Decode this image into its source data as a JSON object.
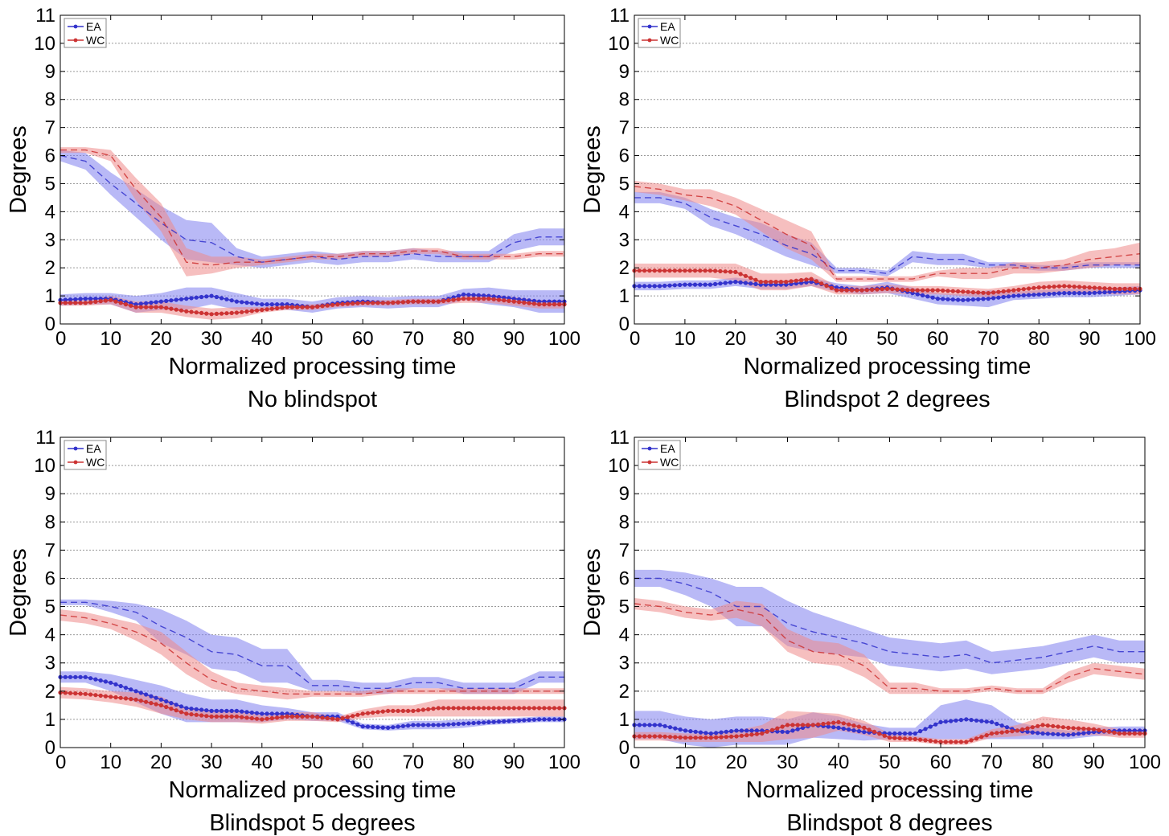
{
  "colors": {
    "ea": "#3333cc",
    "wc": "#cc3333",
    "ea_band": "#8080ee",
    "wc_band": "#ee8a8a"
  },
  "chart_data": [
    {
      "type": "line",
      "title": "No blindspot",
      "xlabel": "Normalized processing time",
      "ylabel": "Degrees",
      "xlim": [
        0,
        100
      ],
      "ylim": [
        0,
        11
      ],
      "xticks": [
        "0",
        "10",
        "20",
        "30",
        "40",
        "50",
        "60",
        "70",
        "80",
        "90",
        "100"
      ],
      "yticks": [
        "0",
        "1",
        "2",
        "3",
        "4",
        "5",
        "6",
        "7",
        "8",
        "9",
        "10",
        "11"
      ],
      "grid": true,
      "legend": {
        "placement": "top-left",
        "entries": [
          "EA",
          "WC"
        ]
      },
      "x": [
        0,
        5,
        10,
        15,
        20,
        25,
        30,
        35,
        40,
        45,
        50,
        55,
        60,
        65,
        70,
        75,
        80,
        85,
        90,
        95,
        100
      ],
      "series": [
        {
          "name": "EA",
          "style": "dashed",
          "values": [
            6.0,
            5.8,
            5.0,
            4.3,
            3.6,
            3.0,
            2.9,
            2.4,
            2.2,
            2.3,
            2.4,
            2.3,
            2.4,
            2.4,
            2.5,
            2.4,
            2.4,
            2.4,
            2.9,
            3.1,
            3.1
          ],
          "band": [
            0.2,
            0.3,
            0.4,
            0.5,
            0.6,
            0.7,
            0.7,
            0.3,
            0.2,
            0.2,
            0.2,
            0.2,
            0.2,
            0.2,
            0.2,
            0.2,
            0.2,
            0.2,
            0.3,
            0.3,
            0.3
          ]
        },
        {
          "name": "WC",
          "style": "dashed",
          "values": [
            6.2,
            6.2,
            6.0,
            4.8,
            3.8,
            2.2,
            2.1,
            2.2,
            2.2,
            2.3,
            2.4,
            2.4,
            2.5,
            2.5,
            2.6,
            2.6,
            2.4,
            2.4,
            2.4,
            2.5,
            2.5
          ],
          "band": [
            0.1,
            0.1,
            0.2,
            0.4,
            0.5,
            0.5,
            0.3,
            0.2,
            0.1,
            0.1,
            0.1,
            0.1,
            0.1,
            0.1,
            0.1,
            0.1,
            0.1,
            0.1,
            0.1,
            0.1,
            0.1
          ]
        },
        {
          "name": "EA",
          "style": "dotted",
          "values": [
            0.85,
            0.9,
            0.9,
            0.7,
            0.8,
            0.9,
            1.0,
            0.8,
            0.7,
            0.7,
            0.6,
            0.75,
            0.8,
            0.75,
            0.8,
            0.8,
            1.05,
            1.0,
            0.9,
            0.8,
            0.8
          ],
          "band": [
            0.2,
            0.2,
            0.2,
            0.3,
            0.3,
            0.4,
            0.3,
            0.3,
            0.2,
            0.2,
            0.2,
            0.2,
            0.2,
            0.2,
            0.2,
            0.2,
            0.2,
            0.3,
            0.3,
            0.4,
            0.4
          ]
        },
        {
          "name": "WC",
          "style": "dotted",
          "values": [
            0.75,
            0.75,
            0.85,
            0.6,
            0.6,
            0.45,
            0.35,
            0.4,
            0.5,
            0.6,
            0.6,
            0.7,
            0.75,
            0.75,
            0.8,
            0.8,
            0.9,
            0.9,
            0.8,
            0.7,
            0.7
          ],
          "band": [
            0.1,
            0.1,
            0.15,
            0.2,
            0.2,
            0.2,
            0.2,
            0.2,
            0.1,
            0.1,
            0.1,
            0.1,
            0.1,
            0.1,
            0.1,
            0.1,
            0.15,
            0.15,
            0.15,
            0.15,
            0.15
          ]
        }
      ]
    },
    {
      "type": "line",
      "title": "Blindspot 2 degrees",
      "xlabel": "Normalized processing time",
      "ylabel": "Degrees",
      "xlim": [
        0,
        100
      ],
      "ylim": [
        0,
        11
      ],
      "xticks": [
        "0",
        "10",
        "20",
        "30",
        "40",
        "50",
        "60",
        "70",
        "80",
        "90",
        "100"
      ],
      "yticks": [
        "0",
        "1",
        "2",
        "3",
        "4",
        "5",
        "6",
        "7",
        "8",
        "9",
        "10",
        "11"
      ],
      "grid": true,
      "legend": {
        "placement": "top-left",
        "entries": [
          "EA",
          "WC"
        ]
      },
      "x": [
        0,
        5,
        10,
        15,
        20,
        25,
        30,
        35,
        40,
        45,
        50,
        55,
        60,
        65,
        70,
        75,
        80,
        85,
        90,
        95,
        100
      ],
      "series": [
        {
          "name": "EA",
          "style": "dashed",
          "values": [
            4.5,
            4.5,
            4.3,
            3.8,
            3.5,
            3.2,
            2.8,
            2.5,
            1.9,
            1.9,
            1.8,
            2.4,
            2.3,
            2.3,
            2.1,
            2.1,
            2.0,
            2.0,
            2.1,
            2.1,
            2.1
          ],
          "band": [
            0.2,
            0.2,
            0.2,
            0.3,
            0.3,
            0.4,
            0.4,
            0.4,
            0.1,
            0.1,
            0.1,
            0.2,
            0.2,
            0.2,
            0.1,
            0.1,
            0.1,
            0.1,
            0.1,
            0.1,
            0.1
          ]
        },
        {
          "name": "WC",
          "style": "dashed",
          "values": [
            4.9,
            4.8,
            4.6,
            4.5,
            4.2,
            3.7,
            3.2,
            2.8,
            1.6,
            1.6,
            1.6,
            1.6,
            1.8,
            1.8,
            1.8,
            2.0,
            2.0,
            2.1,
            2.3,
            2.4,
            2.5
          ],
          "band": [
            0.2,
            0.2,
            0.2,
            0.3,
            0.3,
            0.4,
            0.5,
            0.5,
            0.1,
            0.1,
            0.1,
            0.1,
            0.1,
            0.2,
            0.2,
            0.2,
            0.2,
            0.2,
            0.3,
            0.3,
            0.4
          ]
        },
        {
          "name": "EA",
          "style": "dotted",
          "values": [
            1.35,
            1.35,
            1.4,
            1.4,
            1.5,
            1.4,
            1.4,
            1.5,
            1.3,
            1.2,
            1.3,
            1.1,
            0.9,
            0.85,
            0.9,
            1.0,
            1.05,
            1.1,
            1.1,
            1.15,
            1.2
          ],
          "band": [
            0.15,
            0.15,
            0.15,
            0.15,
            0.15,
            0.15,
            0.15,
            0.15,
            0.15,
            0.15,
            0.2,
            0.2,
            0.2,
            0.2,
            0.3,
            0.15,
            0.15,
            0.15,
            0.15,
            0.15,
            0.15
          ]
        },
        {
          "name": "WC",
          "style": "dotted",
          "values": [
            1.9,
            1.9,
            1.9,
            1.9,
            1.85,
            1.5,
            1.5,
            1.6,
            1.2,
            1.2,
            1.25,
            1.2,
            1.2,
            1.15,
            1.1,
            1.2,
            1.3,
            1.35,
            1.3,
            1.25,
            1.25
          ],
          "band": [
            0.25,
            0.25,
            0.25,
            0.25,
            0.3,
            0.3,
            0.3,
            0.25,
            0.15,
            0.15,
            0.15,
            0.15,
            0.15,
            0.15,
            0.15,
            0.15,
            0.2,
            0.2,
            0.2,
            0.2,
            0.2
          ]
        }
      ]
    },
    {
      "type": "line",
      "title": "Blindspot 5 degrees",
      "xlabel": "Normalized processing time",
      "ylabel": "Degrees",
      "xlim": [
        0,
        100
      ],
      "ylim": [
        0,
        11
      ],
      "xticks": [
        "0",
        "10",
        "20",
        "30",
        "40",
        "50",
        "60",
        "70",
        "80",
        "90",
        "100"
      ],
      "yticks": [
        "0",
        "1",
        "2",
        "3",
        "4",
        "5",
        "6",
        "7",
        "8",
        "9",
        "10",
        "11"
      ],
      "grid": true,
      "legend": {
        "placement": "top-left",
        "entries": [
          "EA",
          "WC"
        ]
      },
      "x": [
        0,
        5,
        10,
        15,
        20,
        25,
        30,
        35,
        40,
        45,
        50,
        55,
        60,
        65,
        70,
        75,
        80,
        85,
        90,
        95,
        100
      ],
      "series": [
        {
          "name": "EA",
          "style": "dashed",
          "values": [
            5.15,
            5.15,
            5.0,
            4.8,
            4.3,
            3.9,
            3.4,
            3.3,
            2.9,
            2.9,
            2.2,
            2.2,
            2.1,
            2.1,
            2.3,
            2.3,
            2.1,
            2.1,
            2.1,
            2.5,
            2.5
          ],
          "band": [
            0.1,
            0.1,
            0.2,
            0.3,
            0.6,
            0.6,
            0.6,
            0.6,
            0.6,
            0.6,
            0.2,
            0.2,
            0.2,
            0.2,
            0.2,
            0.2,
            0.2,
            0.2,
            0.2,
            0.2,
            0.2
          ]
        },
        {
          "name": "WC",
          "style": "dashed",
          "values": [
            4.7,
            4.6,
            4.4,
            4.1,
            3.7,
            3.0,
            2.4,
            2.1,
            2.0,
            1.9,
            1.9,
            1.9,
            1.9,
            2.0,
            2.0,
            2.0,
            2.0,
            2.0,
            2.0,
            2.0,
            2.0
          ],
          "band": [
            0.2,
            0.2,
            0.2,
            0.3,
            0.4,
            0.4,
            0.3,
            0.2,
            0.2,
            0.2,
            0.1,
            0.1,
            0.1,
            0.1,
            0.1,
            0.1,
            0.1,
            0.1,
            0.1,
            0.1,
            0.1
          ]
        },
        {
          "name": "EA",
          "style": "dotted",
          "values": [
            2.5,
            2.5,
            2.3,
            2.0,
            1.7,
            1.4,
            1.3,
            1.3,
            1.2,
            1.2,
            1.1,
            1.1,
            0.75,
            0.7,
            0.8,
            0.8,
            0.85,
            0.9,
            0.95,
            1.0,
            1.0
          ],
          "band": [
            0.2,
            0.2,
            0.3,
            0.4,
            0.5,
            0.5,
            0.4,
            0.4,
            0.3,
            0.2,
            0.15,
            0.15,
            0.1,
            0.1,
            0.15,
            0.15,
            0.15,
            0.1,
            0.1,
            0.1,
            0.1
          ]
        },
        {
          "name": "WC",
          "style": "dotted",
          "values": [
            1.95,
            1.9,
            1.8,
            1.7,
            1.5,
            1.2,
            1.1,
            1.1,
            1.0,
            1.1,
            1.1,
            1.0,
            1.2,
            1.3,
            1.3,
            1.4,
            1.4,
            1.4,
            1.4,
            1.4,
            1.4
          ],
          "band": [
            0.2,
            0.2,
            0.2,
            0.25,
            0.3,
            0.2,
            0.2,
            0.2,
            0.15,
            0.15,
            0.15,
            0.1,
            0.15,
            0.2,
            0.2,
            0.3,
            0.3,
            0.3,
            0.3,
            0.3,
            0.3
          ]
        }
      ]
    },
    {
      "type": "line",
      "title": "Blindspot 8 degrees",
      "xlabel": "Normalized processing time",
      "ylabel": "Degrees",
      "xlim": [
        0,
        100
      ],
      "ylim": [
        0,
        11
      ],
      "xticks": [
        "0",
        "10",
        "20",
        "30",
        "40",
        "50",
        "60",
        "70",
        "80",
        "90",
        "100"
      ],
      "yticks": [
        "0",
        "1",
        "2",
        "3",
        "4",
        "5",
        "6",
        "7",
        "8",
        "9",
        "10",
        "11"
      ],
      "grid": true,
      "legend": {
        "placement": "top-left",
        "entries": [
          "EA",
          "WC"
        ]
      },
      "x": [
        0,
        5,
        10,
        15,
        20,
        25,
        30,
        35,
        40,
        45,
        50,
        55,
        60,
        65,
        70,
        75,
        80,
        85,
        90,
        95,
        100
      ],
      "series": [
        {
          "name": "EA",
          "style": "dashed",
          "values": [
            6.0,
            6.0,
            5.8,
            5.5,
            5.0,
            5.0,
            4.4,
            4.1,
            3.9,
            3.7,
            3.4,
            3.3,
            3.2,
            3.3,
            3.0,
            3.1,
            3.2,
            3.4,
            3.6,
            3.4,
            3.4
          ],
          "band": [
            0.3,
            0.3,
            0.4,
            0.5,
            0.7,
            0.7,
            0.8,
            0.7,
            0.6,
            0.5,
            0.5,
            0.5,
            0.5,
            0.5,
            0.4,
            0.4,
            0.4,
            0.4,
            0.4,
            0.4,
            0.4
          ]
        },
        {
          "name": "WC",
          "style": "dashed",
          "values": [
            5.1,
            5.0,
            4.8,
            4.7,
            4.9,
            4.7,
            3.8,
            3.4,
            3.3,
            2.9,
            2.1,
            2.1,
            2.0,
            2.0,
            2.1,
            2.0,
            2.0,
            2.5,
            2.8,
            2.7,
            2.6
          ],
          "band": [
            0.2,
            0.2,
            0.2,
            0.2,
            0.3,
            0.4,
            0.4,
            0.4,
            0.4,
            0.4,
            0.2,
            0.2,
            0.1,
            0.1,
            0.1,
            0.1,
            0.1,
            0.2,
            0.2,
            0.2,
            0.2
          ]
        },
        {
          "name": "EA",
          "style": "dotted",
          "values": [
            0.8,
            0.8,
            0.6,
            0.5,
            0.6,
            0.6,
            0.55,
            0.8,
            0.7,
            0.55,
            0.5,
            0.5,
            0.9,
            1.0,
            0.9,
            0.6,
            0.5,
            0.45,
            0.55,
            0.6,
            0.6
          ],
          "band": [
            0.5,
            0.5,
            0.5,
            0.5,
            0.5,
            0.5,
            0.45,
            0.45,
            0.4,
            0.3,
            0.2,
            0.2,
            0.6,
            0.7,
            0.6,
            0.3,
            0.2,
            0.15,
            0.15,
            0.15,
            0.15
          ]
        },
        {
          "name": "WC",
          "style": "dotted",
          "values": [
            0.4,
            0.4,
            0.35,
            0.35,
            0.4,
            0.5,
            0.8,
            0.8,
            0.9,
            0.7,
            0.35,
            0.3,
            0.2,
            0.2,
            0.5,
            0.6,
            0.8,
            0.7,
            0.65,
            0.5,
            0.5
          ],
          "band": [
            0.15,
            0.15,
            0.15,
            0.15,
            0.2,
            0.3,
            0.5,
            0.45,
            0.3,
            0.25,
            0.15,
            0.1,
            0.1,
            0.1,
            0.15,
            0.2,
            0.3,
            0.3,
            0.2,
            0.15,
            0.15
          ]
        }
      ]
    }
  ]
}
